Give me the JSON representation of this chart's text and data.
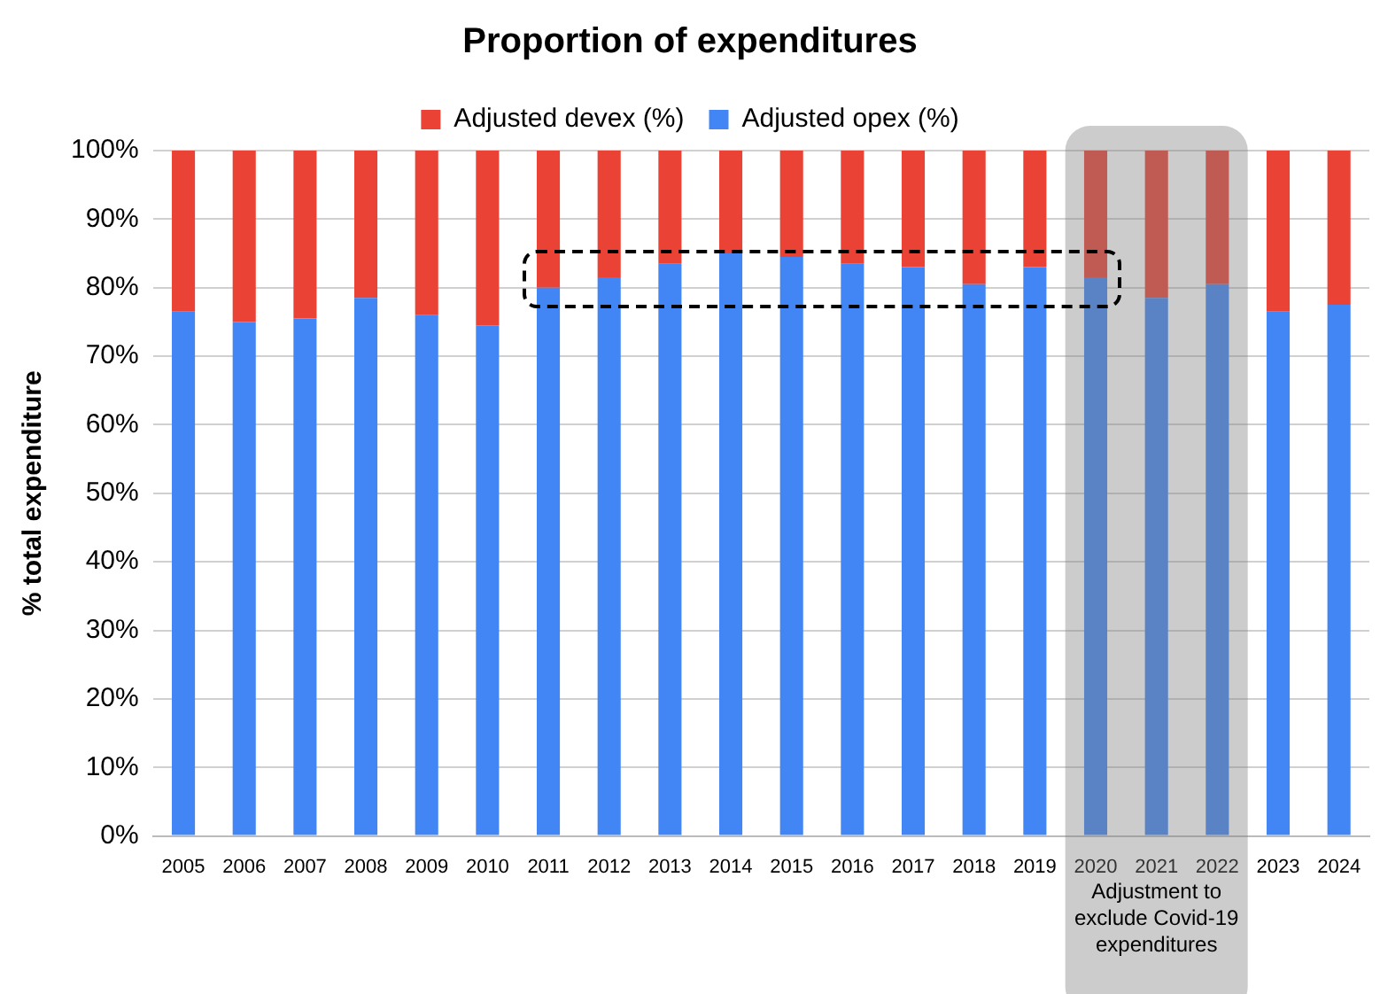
{
  "chart_data": {
    "type": "bar",
    "title": "Proportion of expenditures",
    "ylabel": "% total expenditure",
    "stacked": true,
    "categories": [
      "2005",
      "2006",
      "2007",
      "2008",
      "2009",
      "2010",
      "2011",
      "2012",
      "2013",
      "2014",
      "2015",
      "2016",
      "2017",
      "2018",
      "2019",
      "2020",
      "2021",
      "2022",
      "2023",
      "2024"
    ],
    "series": [
      {
        "name": "Adjusted opex (%)",
        "color": "#4285f4",
        "values": [
          76.5,
          75,
          75.5,
          78.5,
          76,
          74.5,
          80,
          81.5,
          83.5,
          85,
          84.5,
          83.5,
          83,
          80.5,
          83,
          81.5,
          78.5,
          80.5,
          76.5,
          77.5
        ]
      },
      {
        "name": "Adjusted devex (%)",
        "color": "#ea4335",
        "values": [
          23.5,
          25,
          24.5,
          21.5,
          24,
          25.5,
          20,
          18.5,
          16.5,
          15,
          15.5,
          16.5,
          17,
          19.5,
          17,
          18.5,
          21.5,
          19.5,
          23.5,
          22.5
        ]
      }
    ],
    "ylim": [
      0,
      100
    ],
    "yticks": [
      {
        "value": 0,
        "label": "0%"
      },
      {
        "value": 10,
        "label": "10%"
      },
      {
        "value": 20,
        "label": "20%"
      },
      {
        "value": 30,
        "label": "30%"
      },
      {
        "value": 40,
        "label": "40%"
      },
      {
        "value": 50,
        "label": "50%"
      },
      {
        "value": 60,
        "label": "60%"
      },
      {
        "value": 70,
        "label": "70%"
      },
      {
        "value": 80,
        "label": "80%"
      },
      {
        "value": 90,
        "label": "90%"
      },
      {
        "value": 100,
        "label": "100%"
      }
    ],
    "grid": "y",
    "legend": "top",
    "bands": [
      {
        "axis": "x",
        "from": "2020",
        "to": "2022",
        "label": "Adjustment to exclude Covid-19 expenditures",
        "color": "#808080"
      }
    ]
  }
}
